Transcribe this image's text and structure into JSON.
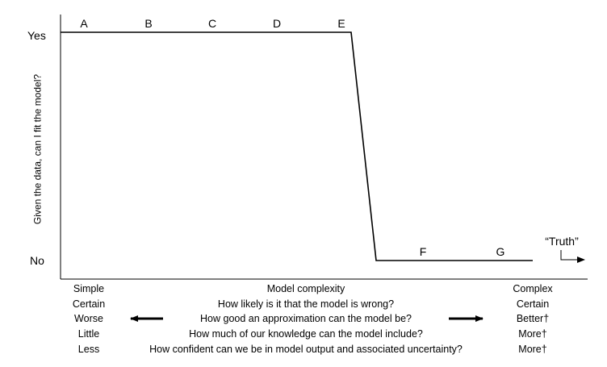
{
  "axis": {
    "ylabel": "Given the data, can I fit the model?",
    "y_ticks": [
      "Yes",
      "No"
    ]
  },
  "points_top": [
    "A",
    "B",
    "C",
    "D",
    "E"
  ],
  "points_bottom": [
    "F",
    "G"
  ],
  "truth_label": "“Truth”",
  "rows": [
    {
      "left": "Simple",
      "center": "Model complexity",
      "right": "Complex"
    },
    {
      "left": "Certain",
      "center": "How likely is it that the model is wrong?",
      "right": "Certain"
    },
    {
      "left": "Worse",
      "center": "How good an approximation can the model be?",
      "right": "Better†"
    },
    {
      "left": "Little",
      "center": "How much of our knowledge can the model include?",
      "right": "More†"
    },
    {
      "left": "Less",
      "center": "How confident can we be in model output and associated uncertainty?",
      "right": "More†"
    }
  ]
}
